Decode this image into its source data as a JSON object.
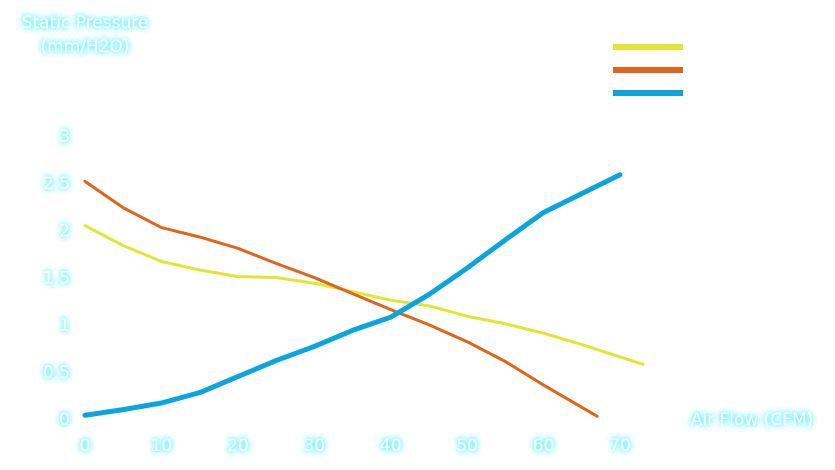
{
  "chart_data": {
    "type": "line",
    "y_label": [
      "Static Pressure",
      "(mm/H2O)"
    ],
    "x_label": "Air Flow (CFM)",
    "xlim": [
      0,
      70
    ],
    "xticks": [
      0,
      10,
      20,
      30,
      40,
      50,
      60,
      70
    ],
    "ylim": [
      0,
      3
    ],
    "yticks": [
      0,
      0.5,
      1,
      1.5,
      2,
      2.5,
      3
    ],
    "legend": "top-right",
    "series": [
      {
        "color": "#e4e432",
        "x": [
          0,
          5,
          10,
          15,
          20,
          25,
          30,
          35,
          40,
          45,
          50,
          55,
          60,
          65,
          73
        ],
        "values": [
          2.06,
          1.85,
          1.68,
          1.59,
          1.52,
          1.51,
          1.45,
          1.36,
          1.27,
          1.21,
          1.1,
          1.02,
          0.92,
          0.8,
          0.59
        ]
      },
      {
        "color": "#e0651a",
        "x": [
          0,
          5,
          10,
          15,
          20,
          25,
          30,
          35,
          40,
          45,
          50,
          55,
          60,
          67
        ],
        "values": [
          2.53,
          2.25,
          2.04,
          1.94,
          1.82,
          1.66,
          1.51,
          1.34,
          1.17,
          1.01,
          0.83,
          0.62,
          0.37,
          0.04
        ]
      },
      {
        "color": "#0aa5e0",
        "x": [
          0,
          5,
          10,
          15,
          20,
          25,
          30,
          35,
          40,
          45,
          50,
          55,
          60,
          70
        ],
        "values": [
          0.05,
          0.11,
          0.18,
          0.29,
          0.46,
          0.63,
          0.78,
          0.95,
          1.09,
          1.33,
          1.61,
          1.91,
          2.2,
          2.6
        ]
      }
    ]
  }
}
